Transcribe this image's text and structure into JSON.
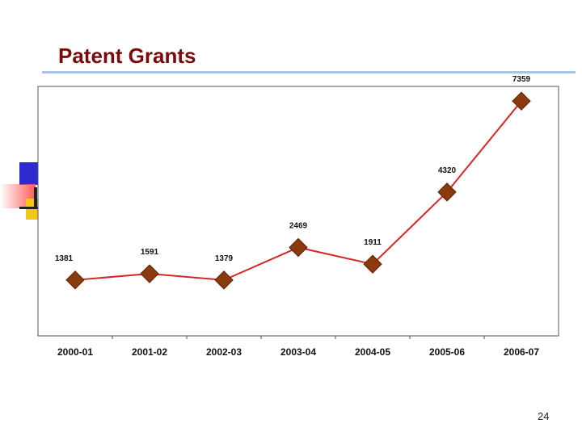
{
  "slide": {
    "title": "Patent Grants",
    "page_number": "24"
  },
  "chart_data": {
    "type": "line",
    "title": "",
    "xlabel": "",
    "ylabel": "",
    "categories": [
      "2000-01",
      "2001-02",
      "2002-03",
      "2003-04",
      "2004-05",
      "2005-06",
      "2006-07"
    ],
    "series": [
      {
        "values": [
          1381,
          1591,
          1379,
          2469,
          1911,
          4320,
          7359
        ]
      }
    ],
    "ylim": [
      0,
      7500
    ],
    "grid": false,
    "legend": "none",
    "colors": {
      "line": "#d62728",
      "marker": "#8b3a0e",
      "marker_edge": "#5a2005"
    }
  }
}
